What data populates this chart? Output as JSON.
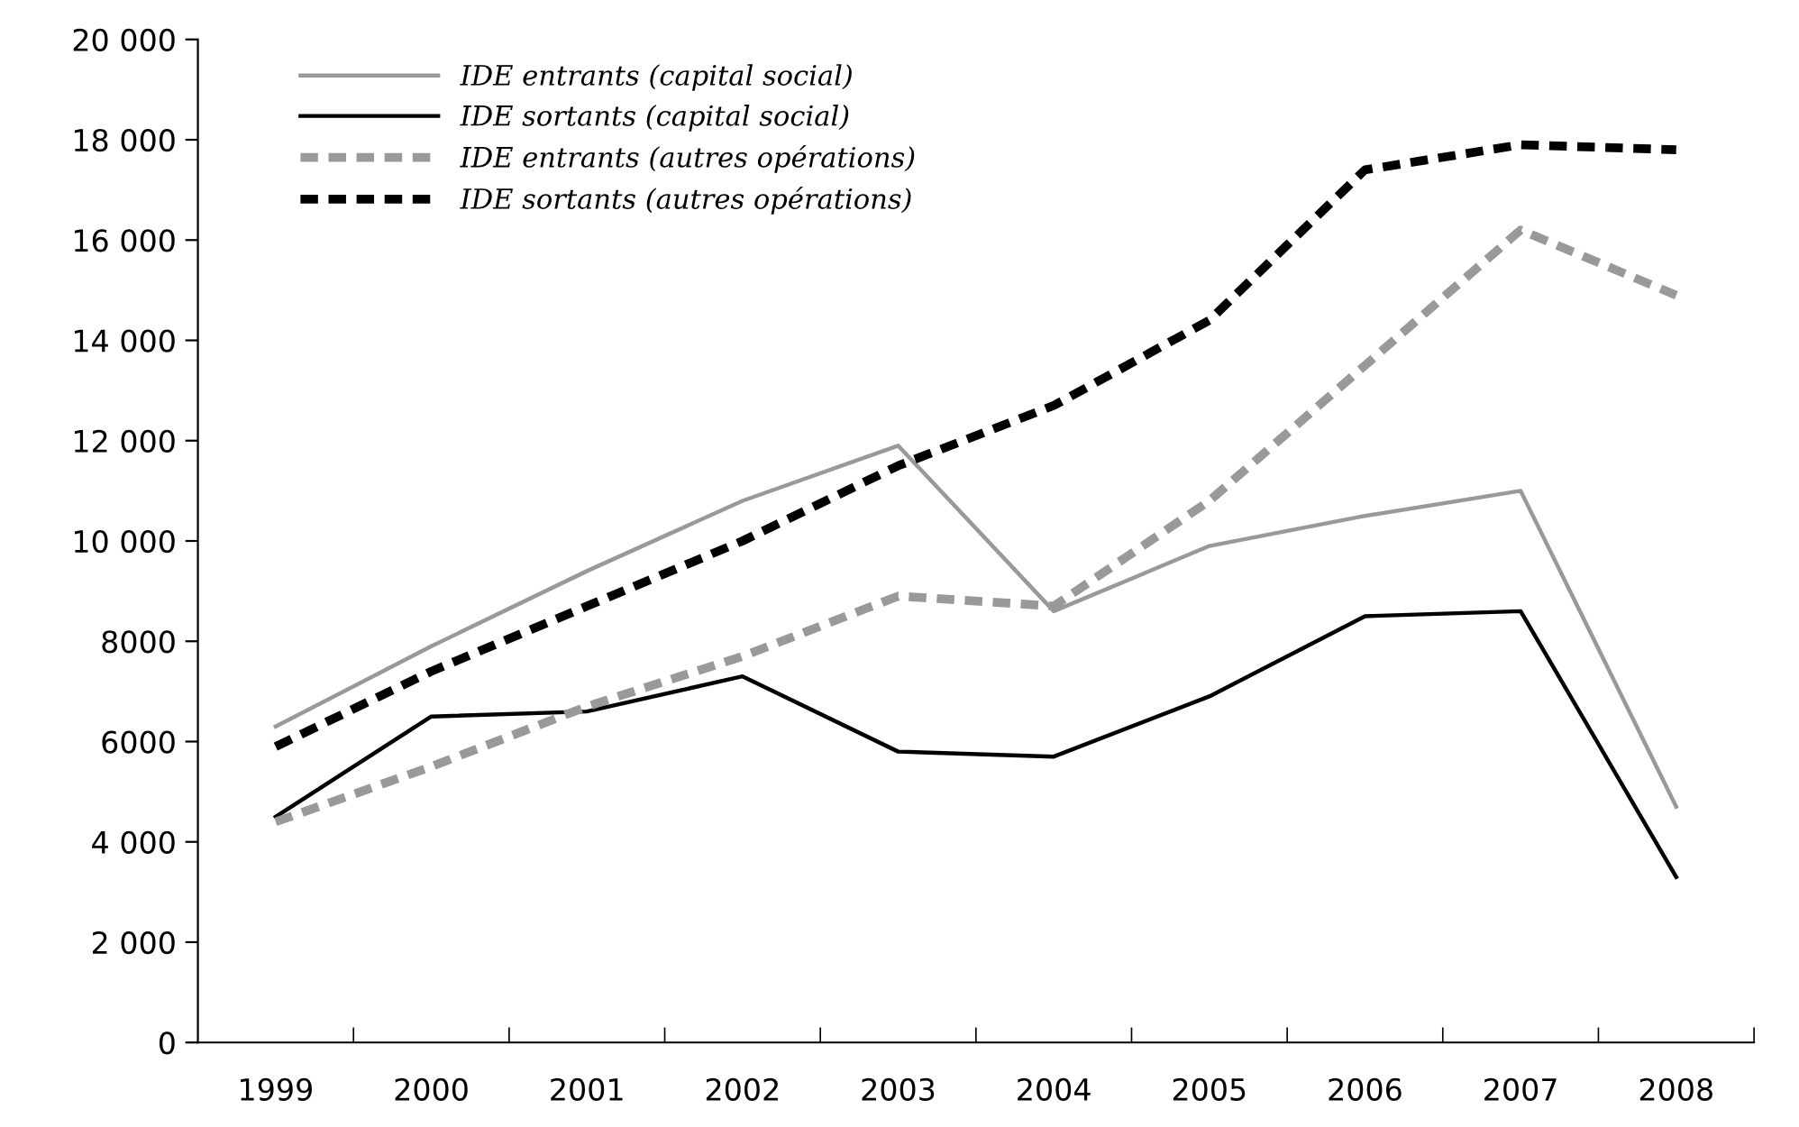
{
  "chart_data": {
    "type": "line",
    "categories": [
      "1999",
      "2000",
      "2001",
      "2002",
      "2003",
      "2004",
      "2005",
      "2006",
      "2007",
      "2008"
    ],
    "series": [
      {
        "name": "IDE entrants (capital social)",
        "color": "#999999",
        "line_style": "solid",
        "values": [
          6300,
          7900,
          9400,
          10800,
          11900,
          8600,
          9900,
          10500,
          11000,
          4700
        ]
      },
      {
        "name": "IDE sortants (capital social)",
        "color": "#000000",
        "line_style": "solid",
        "values": [
          4500,
          6500,
          6600,
          7300,
          5800,
          5700,
          6900,
          8500,
          8600,
          3300
        ]
      },
      {
        "name": "IDE entrants (autres opérations)",
        "color": "#999999",
        "line_style": "dashed",
        "values": [
          4400,
          5500,
          6700,
          7700,
          8900,
          8700,
          10800,
          13500,
          16200,
          14900
        ]
      },
      {
        "name": "IDE sortants (autres opérations)",
        "color": "#000000",
        "line_style": "dashed",
        "values": [
          5900,
          7400,
          8700,
          10000,
          11500,
          12700,
          14400,
          17400,
          17900,
          17800
        ]
      }
    ],
    "ylim": [
      0,
      20000
    ],
    "yticks": [
      0,
      {
        "value": 2000,
        "label": "2 000"
      },
      {
        "value": 4000,
        "label": "4 000"
      },
      6000,
      8000,
      {
        "value": 10000,
        "label": "10 000"
      },
      {
        "value": 12000,
        "label": "12 000"
      },
      {
        "value": 14000,
        "label": "14 000"
      },
      {
        "value": 16000,
        "label": "16 000"
      },
      {
        "value": 18000,
        "label": "18 000"
      },
      {
        "value": 20000,
        "label": "20 000"
      }
    ],
    "grid": false,
    "legend": "top left",
    "marker": "none"
  }
}
